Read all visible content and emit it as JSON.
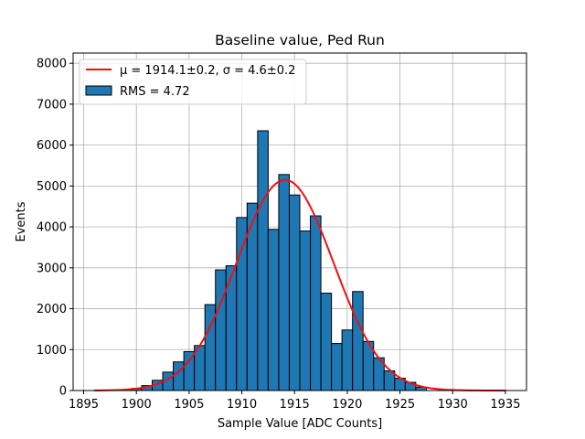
{
  "chart_data": {
    "type": "bar",
    "title": "Baseline value, Ped Run",
    "xlabel": "Sample Value [ADC Counts]",
    "ylabel": "Events",
    "xlim": [
      1894,
      1937
    ],
    "ylim": [
      0,
      8250
    ],
    "xticks": [
      1895,
      1900,
      1905,
      1910,
      1915,
      1920,
      1925,
      1930,
      1935
    ],
    "yticks": [
      0,
      1000,
      2000,
      3000,
      4000,
      5000,
      6000,
      7000,
      8000
    ],
    "grid": true,
    "legend_position": "top-left",
    "bin_width": 1,
    "bins": [
      {
        "x": 1900,
        "y": 50
      },
      {
        "x": 1901,
        "y": 120
      },
      {
        "x": 1902,
        "y": 250
      },
      {
        "x": 1903,
        "y": 450
      },
      {
        "x": 1904,
        "y": 700
      },
      {
        "x": 1905,
        "y": 950
      },
      {
        "x": 1906,
        "y": 1100
      },
      {
        "x": 1907,
        "y": 2100
      },
      {
        "x": 1908,
        "y": 2950
      },
      {
        "x": 1909,
        "y": 3050
      },
      {
        "x": 1910,
        "y": 4230
      },
      {
        "x": 1911,
        "y": 4580
      },
      {
        "x": 1912,
        "y": 6350
      },
      {
        "x": 1913,
        "y": 3940
      },
      {
        "x": 1914,
        "y": 5280
      },
      {
        "x": 1915,
        "y": 4780
      },
      {
        "x": 1916,
        "y": 3900
      },
      {
        "x": 1917,
        "y": 4270
      },
      {
        "x": 1918,
        "y": 2380
      },
      {
        "x": 1919,
        "y": 1150
      },
      {
        "x": 1920,
        "y": 1480
      },
      {
        "x": 1921,
        "y": 2420
      },
      {
        "x": 1922,
        "y": 1200
      },
      {
        "x": 1923,
        "y": 800
      },
      {
        "x": 1924,
        "y": 480
      },
      {
        "x": 1925,
        "y": 300
      },
      {
        "x": 1926,
        "y": 200
      },
      {
        "x": 1927,
        "y": 80
      }
    ],
    "fit": {
      "label": "μ = 1914.1±0.2, σ = 4.6±0.2",
      "mu": 1914.1,
      "sigma": 4.6,
      "amplitude": 5150,
      "x_range": [
        1896,
        1935
      ]
    },
    "histogram_label": "RMS = 4.72",
    "colors": {
      "bar_fill": "#1f77b4",
      "bar_edge": "#000000",
      "fit_line": "#ee1111",
      "grid": "#b0b0b0"
    }
  },
  "legend": {
    "fit_label": "μ = 1914.1±0.2, σ = 4.6±0.2",
    "hist_label": "RMS = 4.72"
  }
}
